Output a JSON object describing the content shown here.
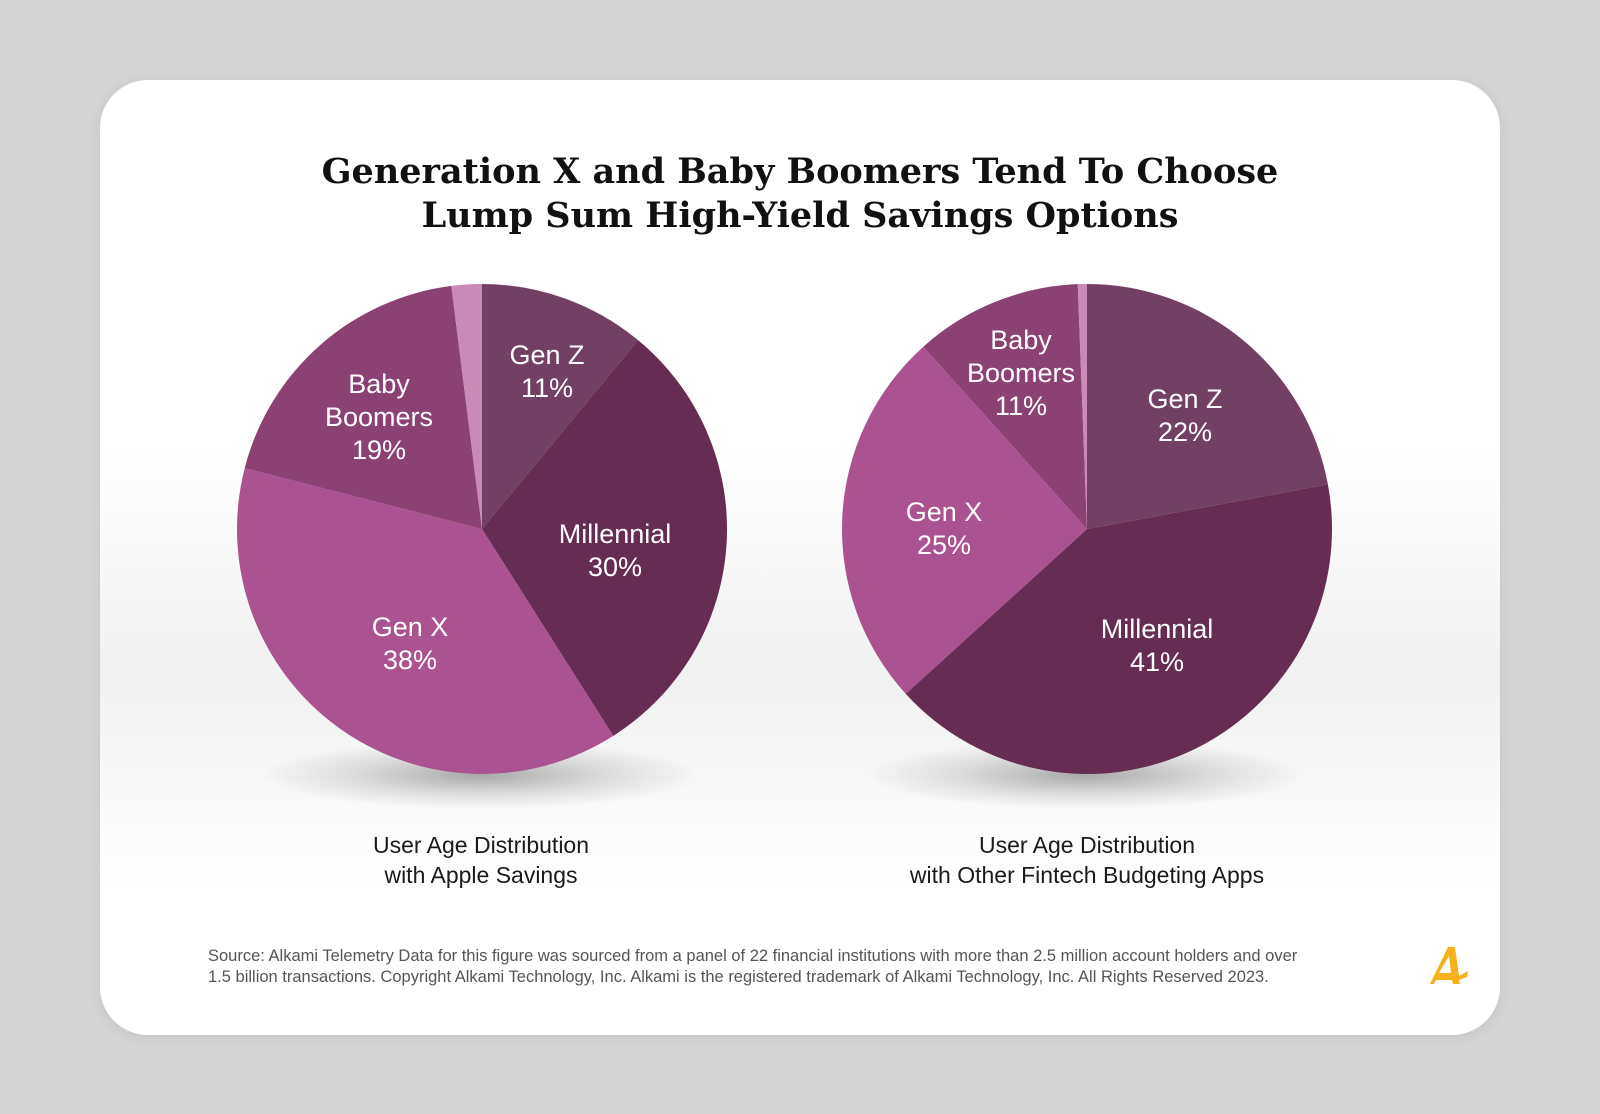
{
  "title_lines": [
    "Generation X and Baby Boomers Tend To Choose",
    "Lump Sum High-Yield Savings Options"
  ],
  "chart_data": [
    {
      "type": "pie",
      "caption_lines": [
        "User Age Distribution",
        "with Apple Savings"
      ],
      "slices": [
        {
          "name": "Gen Z",
          "value": 11,
          "label": "11%",
          "color": "#733f63"
        },
        {
          "name": "Millennial",
          "value": 30,
          "label": "30%",
          "color": "#672c51"
        },
        {
          "name": "Gen X",
          "value": 38,
          "label": "38%",
          "color": "#ab5291"
        },
        {
          "name": "Baby Boomers",
          "value": 19,
          "label": "19%",
          "color": "#8b4273"
        },
        {
          "name": "",
          "value": 2,
          "label": "",
          "color": "#c98ab6"
        }
      ]
    },
    {
      "type": "pie",
      "caption_lines": [
        "User Age Distribution",
        "with Other Fintech Budgeting Apps"
      ],
      "slices": [
        {
          "name": "Gen Z",
          "value": 22,
          "label": "22%",
          "color": "#733f63"
        },
        {
          "name": "Millennial",
          "value": 41,
          "label": "41%",
          "color": "#672c51"
        },
        {
          "name": "Gen X",
          "value": 25,
          "label": "25%",
          "color": "#ab5291"
        },
        {
          "name": "Baby Boomers",
          "value": 11,
          "label": "11%",
          "color": "#8b4273"
        },
        {
          "name": "",
          "value": 0.6,
          "label": "",
          "color": "#c98ab6"
        }
      ]
    }
  ],
  "source_lines": [
    "Source: Alkami Telemetry Data for this figure was sourced from a panel of 22 financial institutions with more than 2.5 million account holders and over",
    "1.5 billion transactions. Copyright Alkami Technology, Inc. Alkami is the registered trademark of Alkami Technology, Inc. All Rights Reserved 2023."
  ],
  "brand_color": "#f6b21b",
  "logo_icon": "alkami-logo-icon"
}
